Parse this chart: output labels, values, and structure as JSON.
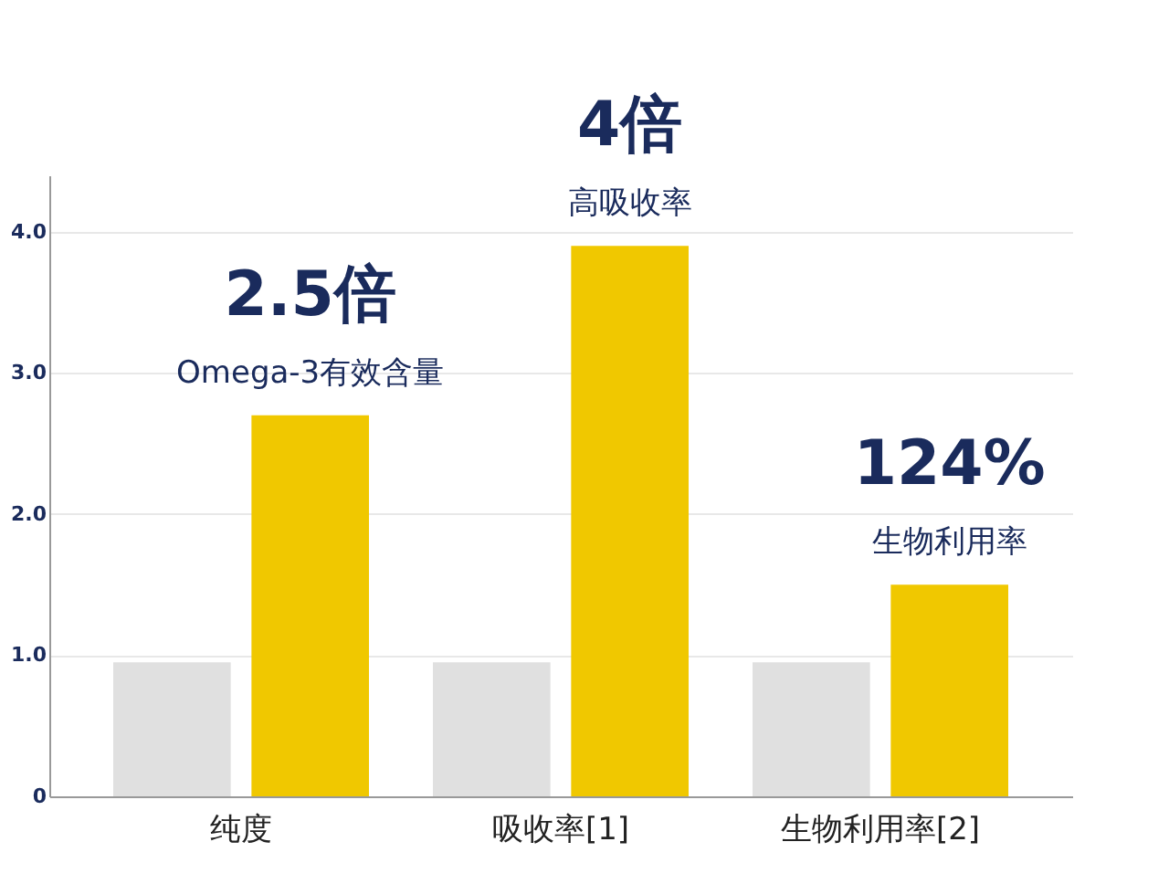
{
  "chart_data": {
    "type": "bar",
    "categories": [
      "纯度",
      "吸收率[1]",
      "生物利用率[2]"
    ],
    "series": [
      {
        "color": "#e0e0e0",
        "values": [
          0.95,
          0.95,
          0.95
        ]
      },
      {
        "color": "#f0c800",
        "values": [
          2.7,
          3.9,
          1.5
        ]
      }
    ],
    "ylim": [
      0,
      4.4
    ],
    "yticks": [
      0,
      {
        "value": 1,
        "label": "1.0"
      },
      {
        "value": 2,
        "label": "2.0"
      },
      {
        "value": 3,
        "label": "3.0"
      },
      {
        "value": 4,
        "label": "4.0"
      }
    ],
    "grid": "y",
    "legend": false,
    "annotations": [
      "2.5倍",
      "Omega-3有效含量",
      "4倍",
      "高吸收率",
      "124%",
      "生物利用率"
    ]
  }
}
